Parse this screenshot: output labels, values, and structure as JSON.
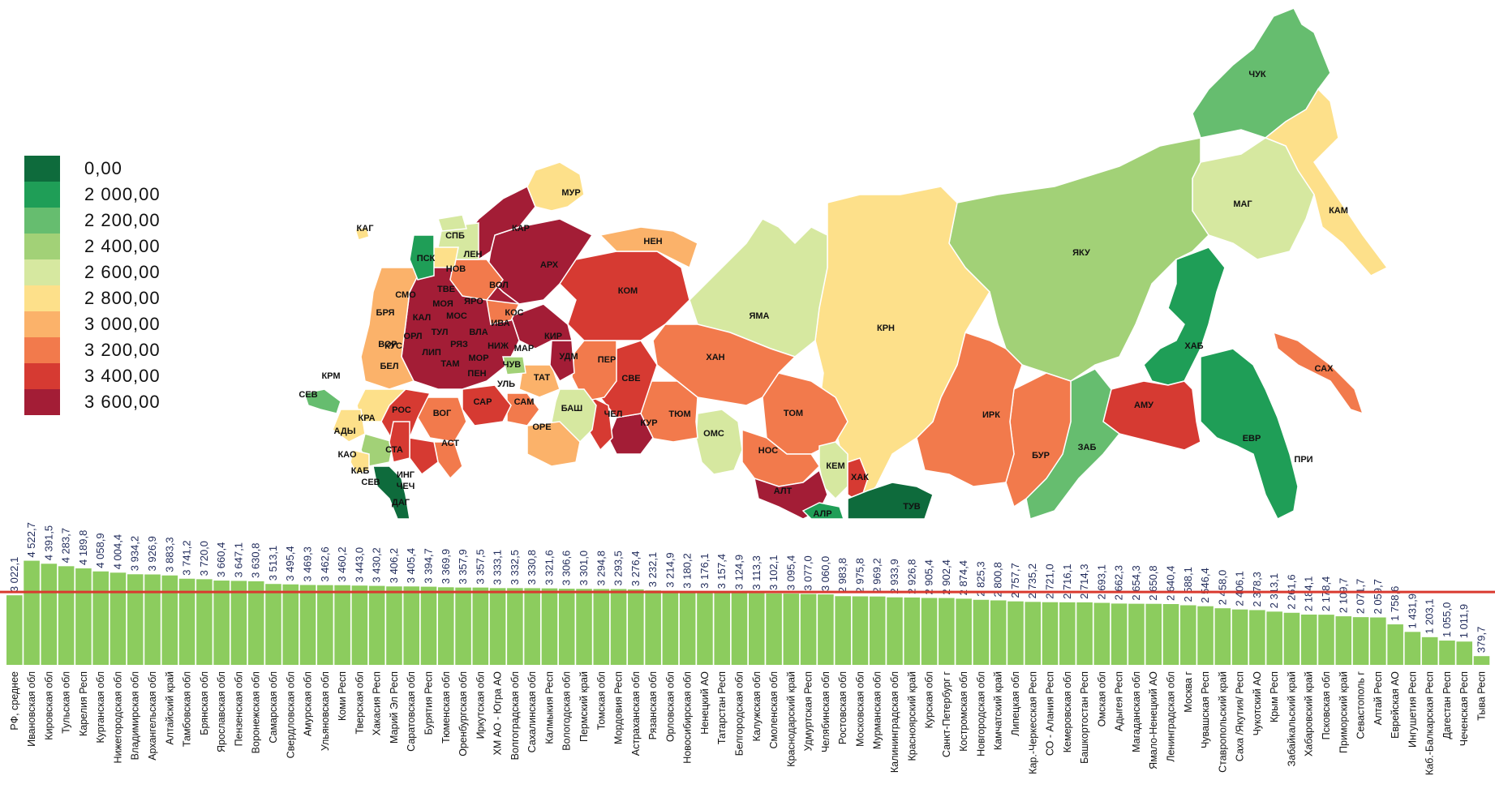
{
  "legend": {
    "items": [
      {
        "label": "0,00",
        "color": "#0e6b3c"
      },
      {
        "label": "2 000,00",
        "color": "#1f9e57"
      },
      {
        "label": "2 200,00",
        "color": "#66bd6f"
      },
      {
        "label": "2 400,00",
        "color": "#a2d177"
      },
      {
        "label": "2 600,00",
        "color": "#d6e8a0"
      },
      {
        "label": "2 800,00",
        "color": "#fde08a"
      },
      {
        "label": "3 000,00",
        "color": "#fbb26a"
      },
      {
        "label": "3 200,00",
        "color": "#f27a4c"
      },
      {
        "label": "3 400,00",
        "color": "#d63a32"
      },
      {
        "label": "3 600,00",
        "color": "#a31d36"
      }
    ]
  },
  "map_labels": [
    "ЧУК",
    "КАМ",
    "МАГ",
    "ЯКУ",
    "ХАБ",
    "САХ",
    "АМУ",
    "ЕВР",
    "ПРИ",
    "ЗАБ",
    "БУР",
    "ИРК",
    "ТУВ",
    "ХАК",
    "АЛР",
    "АЛТ",
    "КЕМ",
    "НОС",
    "ТОМ",
    "КРН",
    "ЯМА",
    "ХАН",
    "ОМС",
    "ТЮМ",
    "КУР",
    "СВЕ",
    "ПЕР",
    "КОМ",
    "НЕН",
    "АРХ",
    "КАР",
    "МУР",
    "ЧЕЛ",
    "БАШ",
    "ОРЕ",
    "САМ",
    "УЛЬ",
    "ТАТ",
    "ЧУВ",
    "МАР",
    "УДМ",
    "КИР",
    "КОС",
    "ВОЛ",
    "ЯРО",
    "ИВА",
    "ВЛА",
    "НИЖ",
    "МОР",
    "ПЕН",
    "САР",
    "ВОГ",
    "АСТ",
    "КАЛ",
    "СТА",
    "КРА",
    "АДЫ",
    "РОС",
    "ВОР",
    "БЕЛ",
    "КУС",
    "ОРЛ",
    "ТУЛ",
    "РЯЗ",
    "ЛИП",
    "ТАМ",
    "МОС",
    "МОЯ",
    "ТВЕ",
    "СМО",
    "БРЯ",
    "НОВ",
    "ЛЕН",
    "СПБ",
    "ПСК",
    "КАГ",
    "КРМ",
    "СЕВ",
    "КАО",
    "КАБ",
    "ИНГ",
    "ЧЕЧ",
    "ДАГ",
    "СЕВ"
  ],
  "chart_data": {
    "type": "bar",
    "title": "",
    "xlabel": "",
    "ylabel": "",
    "ylim": [
      0,
      4600
    ],
    "reference_line": {
      "label": "РФ, среднее",
      "value": 3022.1,
      "color": "#d93a2f"
    },
    "bar_color": "#8ccc5e",
    "categories": [
      "РФ, среднее",
      "Ивановская обл",
      "Кировская обл",
      "Тульская обл",
      "Карелия Респ",
      "Курганская обл",
      "Нижегородская обл",
      "Владимирская обл",
      "Архангельская обл",
      "Алтайский край",
      "Тамбовская обл",
      "Брянская обл",
      "Ярославская обл",
      "Пензенская обл",
      "Воронежская обл",
      "Самарская обл",
      "Свердловская обл",
      "Амурская обл",
      "Ульяновская обл",
      "Коми Респ",
      "Тверская обл",
      "Хакасия Респ",
      "Марий Эл Респ",
      "Саратовская обл",
      "Бурятия Респ",
      "Тюменская обл",
      "Оренбургская обл",
      "Иркутская обл",
      "ХМ АО - Югра АО",
      "Волгоградская обл",
      "Сахалинская обл",
      "Калмыкия Респ",
      "Вологодская обл",
      "Пермский край",
      "Томская обл",
      "Мордовия Респ",
      "Астраханская обл",
      "Рязанская обл",
      "Орловская обл",
      "Новосибирская обл",
      "Ненецкий АО",
      "Татарстан Респ",
      "Белгородская обл",
      "Калужская обл",
      "Смоленская обл",
      "Краснодарский край",
      "Удмуртская Респ",
      "Челябинская обл",
      "Ростовская обл",
      "Московская обл",
      "Мурманская обл",
      "Калининградская обл",
      "Красноярский край",
      "Курская обл",
      "Санкт-Петербург г",
      "Костромская обл",
      "Новгородская обл",
      "Камчатский край",
      "Липецкая обл",
      "Кар.-Черкесская Респ",
      "СО - Алания Респ",
      "Кемеровская обл",
      "Башкортостан Респ",
      "Омская обл",
      "Адыгея Респ",
      "Магаданская обл",
      "Ямало-Ненецкий АО",
      "Ленинградская обл",
      "Москва г",
      "Чувашская Респ",
      "Ставропольский край",
      "Саха /Якутия/ Респ",
      "Чукотский АО",
      "Крым Респ",
      "Забайкальский край",
      "Хабаровский край",
      "Псковская обл",
      "Приморский край",
      "Севастополь г",
      "Алтай Респ",
      "Еврейская АО",
      "Ингушетия Респ",
      "Каб.-Балкарская Респ",
      "Дагестан Респ",
      "Чеченская Респ",
      "Тыва Респ"
    ],
    "value_labels": [
      "3 022,1",
      "4 522,7",
      "4 391,5",
      "4 283,7",
      "4 189,8",
      "4 058,9",
      "4 004,4",
      "3 934,2",
      "3 926,9",
      "3 883,3",
      "3 741,2",
      "3 720,0",
      "3 660,4",
      "3 647,1",
      "3 630,8",
      "3 513,1",
      "3 495,4",
      "3 469,3",
      "3 462,6",
      "3 460,2",
      "3 443,0",
      "3 430,2",
      "3 406,2",
      "3 405,4",
      "3 394,7",
      "3 369,9",
      "3 357,9",
      "3 357,5",
      "3 333,1",
      "3 332,5",
      "3 330,8",
      "3 321,6",
      "3 306,6",
      "3 301,0",
      "3 294,8",
      "3 293,5",
      "3 276,4",
      "3 232,1",
      "3 214,9",
      "3 180,2",
      "3 176,1",
      "3 157,4",
      "3 124,9",
      "3 113,3",
      "3 102,1",
      "3 095,4",
      "3 077,0",
      "3 060,0",
      "2 983,8",
      "2 975,8",
      "2 969,2",
      "2 933,9",
      "2 926,8",
      "2 905,4",
      "2 902,4",
      "2 874,4",
      "2 825,3",
      "2 800,8",
      "2 757,7",
      "2 735,2",
      "2 721,0",
      "2 716,1",
      "2 714,3",
      "2 693,1",
      "2 662,3",
      "2 654,3",
      "2 650,8",
      "2 640,4",
      "2 588,1",
      "2 546,4",
      "2 458,0",
      "2 406,1",
      "2 378,3",
      "2 313,1",
      "2 261,6",
      "2 184,1",
      "2 178,4",
      "2 109,7",
      "2 071,7",
      "2 059,7",
      "1 758,6",
      "1 431,9",
      "1 203,1",
      "1 055,0",
      "1 011,9",
      "379,7"
    ],
    "values": [
      3022.1,
      4522.7,
      4391.5,
      4283.7,
      4189.8,
      4058.9,
      4004.4,
      3934.2,
      3926.9,
      3883.3,
      3741.2,
      3720.0,
      3660.4,
      3647.1,
      3630.8,
      3513.1,
      3495.4,
      3469.3,
      3462.6,
      3460.2,
      3443.0,
      3430.2,
      3406.2,
      3405.4,
      3394.7,
      3369.9,
      3357.9,
      3357.5,
      3333.1,
      3332.5,
      3330.8,
      3321.6,
      3306.6,
      3301.0,
      3294.8,
      3293.5,
      3276.4,
      3232.1,
      3214.9,
      3180.2,
      3176.1,
      3157.4,
      3124.9,
      3113.3,
      3102.1,
      3095.4,
      3077.0,
      3060.0,
      2983.8,
      2975.8,
      2969.2,
      2933.9,
      2926.8,
      2905.4,
      2902.4,
      2874.4,
      2825.3,
      2800.8,
      2757.7,
      2735.2,
      2721.0,
      2716.1,
      2714.3,
      2693.1,
      2662.3,
      2654.3,
      2650.8,
      2640.4,
      2588.1,
      2546.4,
      2458.0,
      2406.1,
      2378.3,
      2313.1,
      2261.6,
      2184.1,
      2178.4,
      2109.7,
      2071.7,
      2059.7,
      1758.6,
      1431.9,
      1203.1,
      1055.0,
      1011.9,
      379.7
    ]
  }
}
